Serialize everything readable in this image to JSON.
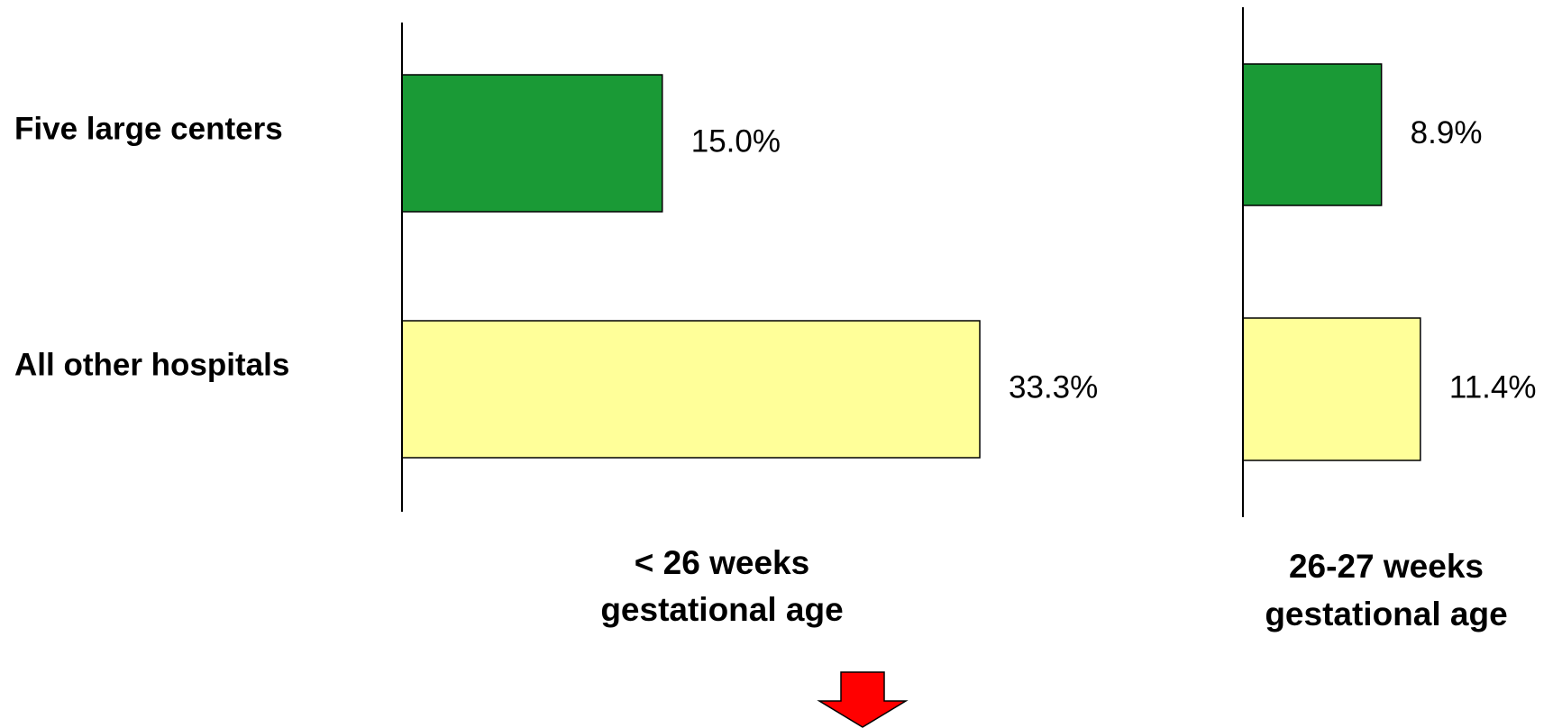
{
  "chart_data": [
    {
      "type": "bar",
      "orientation": "horizontal",
      "title": "< 26 weeks",
      "subtitle": "gestational age",
      "categories": [
        "Five large centers",
        "All other hospitals"
      ],
      "values": [
        15.0,
        33.3
      ],
      "value_labels": [
        "15.0%",
        "33.3%"
      ],
      "colors": [
        "#1a9a36",
        "#ffff99"
      ],
      "xlim": [
        0,
        40
      ]
    },
    {
      "type": "bar",
      "orientation": "horizontal",
      "title": "26-27 weeks",
      "subtitle": "gestational age",
      "categories": [
        null,
        null
      ],
      "values": [
        8.9,
        11.4
      ],
      "value_labels": [
        "8.9%",
        "11.4%"
      ],
      "colors": [
        "#1a9a36",
        "#ffff99"
      ],
      "xlim": [
        0,
        15
      ]
    }
  ]
}
